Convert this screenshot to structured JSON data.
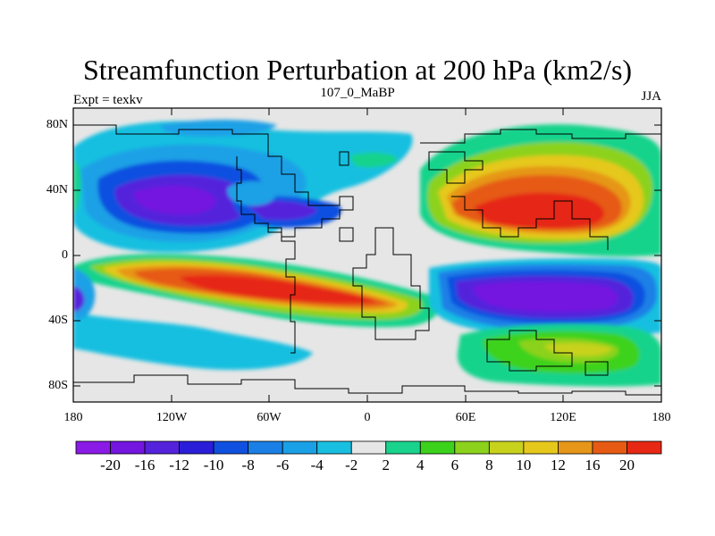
{
  "title": "Streamfunction Perturbation at 200 hPa (km2/s)",
  "left_label": "Expt = texkv",
  "center_label": "107_0_MaBP",
  "right_label": "JJA",
  "lat_ticks": [
    "80N",
    "40N",
    "0",
    "40S",
    "80S"
  ],
  "lon_ticks": [
    "180",
    "120W",
    "60W",
    "0",
    "60E",
    "120E",
    "180"
  ],
  "colorbar": {
    "labels": [
      "-20",
      "-16",
      "-12",
      "-10",
      "-8",
      "-6",
      "-4",
      "-2",
      "2",
      "4",
      "6",
      "8",
      "10",
      "12",
      "16",
      "20"
    ],
    "colors": [
      "#8a1ae6",
      "#7415e0",
      "#5522dc",
      "#2a1ed8",
      "#1050e0",
      "#1a80e6",
      "#1aa0e6",
      "#19bfe0",
      "#e6e6e6",
      "#19d38c",
      "#3cd21c",
      "#8cd21c",
      "#c8d21c",
      "#e6c81c",
      "#e69619",
      "#e65a14",
      "#e62814"
    ]
  }
}
